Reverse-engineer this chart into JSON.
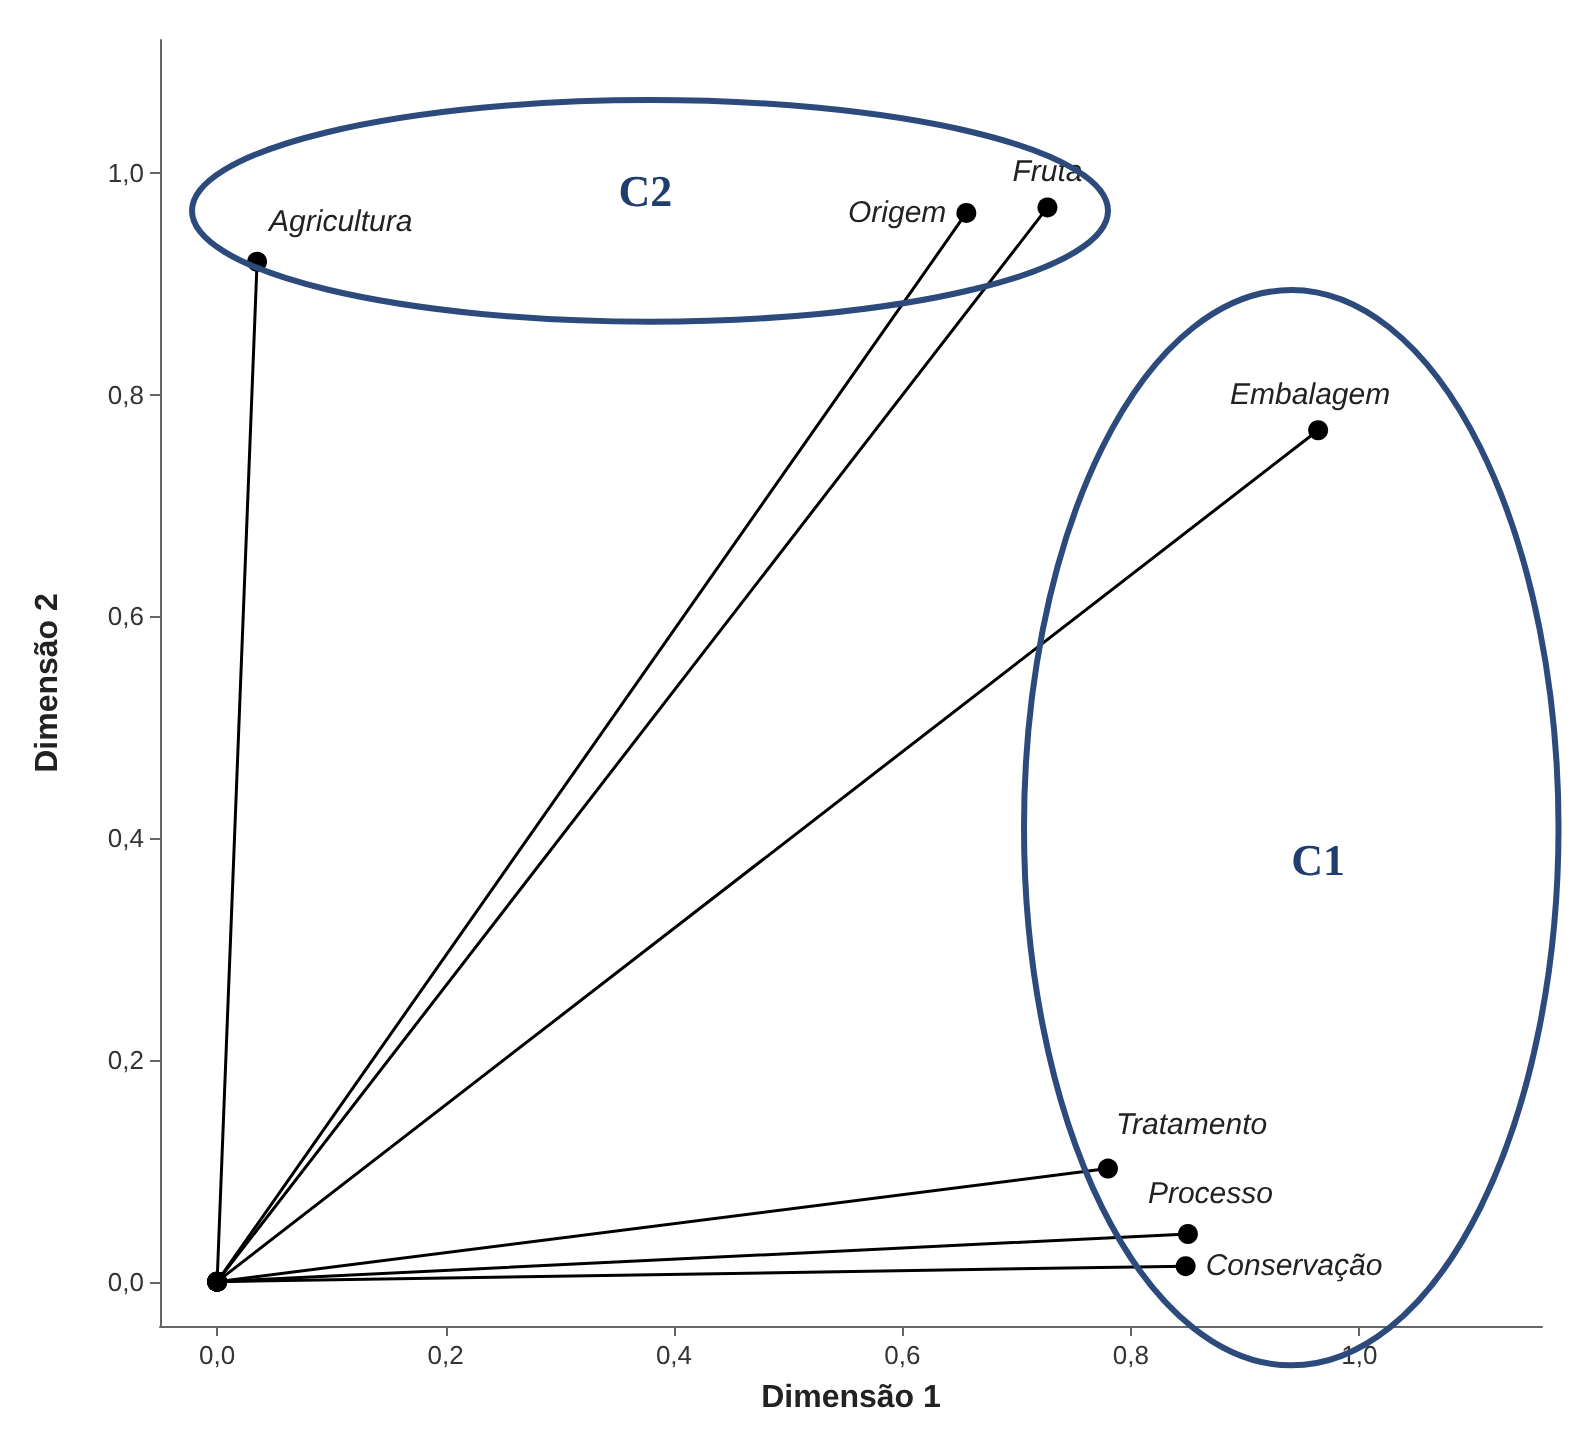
{
  "chart_data": {
    "type": "line",
    "xlabel": "Dimensão 1",
    "ylabel": "Dimensão 2",
    "xlim": [
      -0.05,
      1.16
    ],
    "ylim": [
      -0.04,
      1.12
    ],
    "xticks": [
      {
        "value": 0,
        "label": "0,0"
      },
      {
        "value": 0.2,
        "label": "0,2"
      },
      {
        "value": 0.4,
        "label": "0,4"
      },
      {
        "value": 0.6,
        "label": "0,6"
      },
      {
        "value": 0.8,
        "label": "0,8"
      },
      {
        "value": 1,
        "label": "1,0"
      }
    ],
    "yticks": [
      {
        "value": 0,
        "label": "0,0"
      },
      {
        "value": 0.2,
        "label": "0,2"
      },
      {
        "value": 0.4,
        "label": "0,4"
      },
      {
        "value": 0.6,
        "label": "0,6"
      },
      {
        "value": 0.8,
        "label": "0,8"
      },
      {
        "value": 1,
        "label": "1,0"
      }
    ],
    "grid": false,
    "legend": false,
    "marker": "circle",
    "line_style": "solid",
    "series": [
      {
        "name": "Agricultura",
        "color": "#000000",
        "x": [
          0,
          0.035
        ],
        "values": [
          0,
          0.92
        ]
      },
      {
        "name": "Origem",
        "color": "#000000",
        "x": [
          0,
          0.656
        ],
        "values": [
          0,
          0.964
        ]
      },
      {
        "name": "Fruta",
        "color": "#000000",
        "x": [
          0,
          0.727
        ],
        "values": [
          0,
          0.969
        ]
      },
      {
        "name": "Embalagem",
        "color": "#000000",
        "x": [
          0,
          0.964
        ],
        "values": [
          0,
          0.768
        ]
      },
      {
        "name": "Tratamento",
        "color": "#000000",
        "x": [
          0,
          0.78
        ],
        "values": [
          0,
          0.102
        ]
      },
      {
        "name": "Processo",
        "color": "#000000",
        "x": [
          0,
          0.85
        ],
        "values": [
          0,
          0.043
        ]
      },
      {
        "name": "Conservação",
        "color": "#000000",
        "x": [
          0,
          0.848
        ],
        "values": [
          0,
          0.014
        ]
      }
    ],
    "annotations": [
      "C2",
      "C1"
    ]
  }
}
